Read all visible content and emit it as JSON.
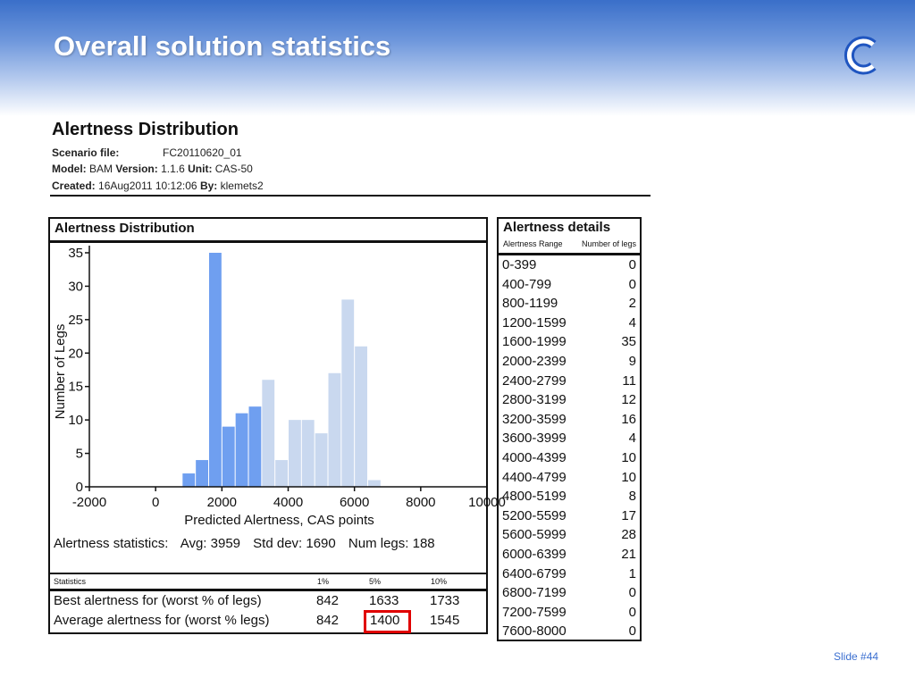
{
  "slide": {
    "title": "Overall solution statistics",
    "logo_icon": "c-logo-icon",
    "number": "Slide #44"
  },
  "report": {
    "title": "Alertness Distribution",
    "scenario_label": "Scenario file:",
    "scenario_value": "FC20110620_01",
    "model_label": "Model:",
    "model_value": "BAM",
    "version_label": "Version:",
    "version_value": "1.1.6",
    "unit_label": "Unit:",
    "unit_value": "CAS-50",
    "created_label": "Created:",
    "created_value": "16Aug2011 10:12:06",
    "by_label": "By:",
    "by_value": "klemets2"
  },
  "panel": {
    "title": "Alertness Distribution"
  },
  "chart_data": {
    "type": "bar",
    "xlabel": "Predicted Alertness, CAS points",
    "ylabel": "Number of Legs",
    "xlim": [
      -2000,
      10000
    ],
    "ylim": [
      0,
      35
    ],
    "xticks": [
      -2000,
      0,
      2000,
      4000,
      6000,
      8000,
      10000
    ],
    "yticks": [
      0,
      5,
      10,
      15,
      20,
      25,
      30,
      35
    ],
    "bin_width": 400,
    "bins": [
      {
        "start": 800,
        "value": 2
      },
      {
        "start": 1200,
        "value": 4
      },
      {
        "start": 1600,
        "value": 35
      },
      {
        "start": 2000,
        "value": 9
      },
      {
        "start": 2400,
        "value": 11
      },
      {
        "start": 2800,
        "value": 12
      },
      {
        "start": 3200,
        "value": 16
      },
      {
        "start": 3600,
        "value": 4
      },
      {
        "start": 4000,
        "value": 10
      },
      {
        "start": 4400,
        "value": 10
      },
      {
        "start": 4800,
        "value": 8
      },
      {
        "start": 5200,
        "value": 17
      },
      {
        "start": 5600,
        "value": 28
      },
      {
        "start": 6000,
        "value": 21
      },
      {
        "start": 6400,
        "value": 1
      }
    ],
    "highlight_below": 3200,
    "colors": {
      "highlight": "#6f9ff0",
      "normal": "#c9d8ef"
    }
  },
  "alertness_statistics": {
    "label": "Alertness statistics:",
    "avg": "Avg: 3959",
    "std": "Std dev: 1690",
    "num": "Num legs: 188"
  },
  "statistics": {
    "header": [
      "Statistics",
      "1%",
      "5%",
      "10%"
    ],
    "rows": [
      {
        "label": "Best alertness for (worst % of legs)",
        "v1": "842",
        "v5": "1633",
        "v10": "1733"
      },
      {
        "label": "Average alertness for (worst % legs)",
        "v1": "842",
        "v5": "1400",
        "v10": "1545"
      }
    ],
    "highlight_color": "#e00000"
  },
  "details": {
    "title": "Alertness details",
    "header_range": "Alertness Range",
    "header_num": "Number of legs",
    "rows": [
      {
        "range": "0-399",
        "num": "0"
      },
      {
        "range": "400-799",
        "num": "0"
      },
      {
        "range": "800-1199",
        "num": "2"
      },
      {
        "range": "1200-1599",
        "num": "4"
      },
      {
        "range": "1600-1999",
        "num": "35"
      },
      {
        "range": "2000-2399",
        "num": "9"
      },
      {
        "range": "2400-2799",
        "num": "11"
      },
      {
        "range": "2800-3199",
        "num": "12"
      },
      {
        "range": "3200-3599",
        "num": "16"
      },
      {
        "range": "3600-3999",
        "num": "4"
      },
      {
        "range": "4000-4399",
        "num": "10"
      },
      {
        "range": "4400-4799",
        "num": "10"
      },
      {
        "range": "4800-5199",
        "num": "8"
      },
      {
        "range": "5200-5599",
        "num": "17"
      },
      {
        "range": "5600-5999",
        "num": "28"
      },
      {
        "range": "6000-6399",
        "num": "21"
      },
      {
        "range": "6400-6799",
        "num": "1"
      },
      {
        "range": "6800-7199",
        "num": "0"
      },
      {
        "range": "7200-7599",
        "num": "0"
      },
      {
        "range": "7600-8000",
        "num": "0"
      }
    ]
  }
}
